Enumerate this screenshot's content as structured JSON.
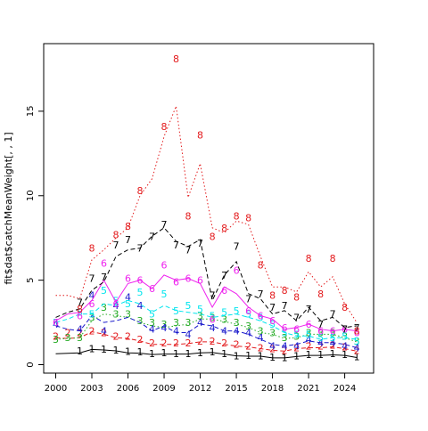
{
  "chart_data": {
    "type": "line",
    "title": "",
    "xlabel": "",
    "ylabel": "fit$dat$catchMeanWeight[, , 1]",
    "xlim": [
      1999.0,
      2026.4
    ],
    "ylim": [
      -0.5,
      19.0
    ],
    "x_ticks": [
      2000,
      2003,
      2006,
      2009,
      2012,
      2015,
      2018,
      2021,
      2024
    ],
    "y_ticks": [
      0,
      5,
      10,
      15
    ],
    "x": [
      2000,
      2001,
      2002,
      2003,
      2004,
      2005,
      2006,
      2007,
      2008,
      2009,
      2010,
      2011,
      2012,
      2013,
      2014,
      2015,
      2016,
      2017,
      2018,
      2019,
      2020,
      2021,
      2022,
      2023,
      2024,
      2025
    ],
    "series": [
      {
        "name": "1",
        "color": "#000000",
        "line_style": "solid",
        "observed": [
          null,
          null,
          0.83,
          0.95,
          0.92,
          0.87,
          0.8,
          0.76,
          0.65,
          0.7,
          0.65,
          0.65,
          0.72,
          0.76,
          0.67,
          0.54,
          0.55,
          0.54,
          0.45,
          0.42,
          0.52,
          0.6,
          0.6,
          0.65,
          0.6,
          0.47
        ],
        "fitted": [
          0.65,
          0.67,
          0.7,
          0.9,
          0.87,
          0.82,
          0.7,
          0.68,
          0.6,
          0.63,
          0.63,
          0.63,
          0.7,
          0.72,
          0.62,
          0.52,
          0.5,
          0.5,
          0.4,
          0.4,
          0.48,
          0.55,
          0.55,
          0.58,
          0.55,
          0.42
        ]
      },
      {
        "name": "2",
        "color": "#e31a1c",
        "line_style": "dashed",
        "observed": [
          1.7,
          1.9,
          1.9,
          2.0,
          1.9,
          1.7,
          1.7,
          1.5,
          1.3,
          1.3,
          1.3,
          1.3,
          1.4,
          1.4,
          1.3,
          1.2,
          1.1,
          1.0,
          0.95,
          0.85,
          1.0,
          1.1,
          1.1,
          1.15,
          1.05,
          0.85
        ],
        "fitted": [
          1.6,
          1.55,
          1.6,
          1.95,
          1.8,
          1.6,
          1.55,
          1.4,
          1.2,
          1.2,
          1.2,
          1.25,
          1.35,
          1.35,
          1.2,
          1.1,
          1.05,
          0.95,
          0.85,
          0.8,
          0.95,
          1.0,
          1.0,
          1.05,
          0.95,
          0.8
        ]
      },
      {
        "name": "3",
        "color": "#22aa22",
        "line_style": "dotted",
        "observed": [
          1.5,
          1.6,
          1.6,
          2.8,
          3.4,
          3.0,
          3.0,
          2.6,
          2.5,
          2.4,
          2.5,
          2.5,
          2.9,
          2.8,
          2.7,
          2.5,
          2.3,
          2.0,
          1.9,
          1.6,
          1.7,
          1.9,
          1.9,
          1.9,
          1.7,
          1.4
        ],
        "fitted": [
          1.5,
          1.55,
          1.6,
          2.6,
          3.0,
          2.9,
          2.8,
          2.5,
          2.3,
          2.2,
          2.3,
          2.4,
          2.7,
          2.7,
          2.55,
          2.4,
          2.2,
          1.9,
          1.8,
          1.55,
          1.6,
          1.8,
          1.8,
          1.8,
          1.6,
          1.35
        ]
      },
      {
        "name": "4",
        "color": "#1a1acc",
        "line_style": "dashed",
        "observed": [
          2.4,
          null,
          2.1,
          4.1,
          2.0,
          3.5,
          4.0,
          3.5,
          2.1,
          2.2,
          2.0,
          1.8,
          2.5,
          2.2,
          2.0,
          2.0,
          1.9,
          1.6,
          1.1,
          1.1,
          1.1,
          1.5,
          1.3,
          1.3,
          1.1,
          1.0
        ],
        "fitted": [
          2.3,
          2.1,
          2.0,
          2.9,
          2.5,
          2.6,
          2.8,
          2.5,
          2.0,
          2.3,
          1.9,
          1.9,
          2.4,
          2.3,
          2.0,
          2.0,
          1.8,
          1.5,
          1.2,
          1.1,
          1.2,
          1.4,
          1.3,
          1.3,
          1.2,
          1.0
        ]
      },
      {
        "name": "5",
        "color": "#00e5ee",
        "line_style": "dashed",
        "observed": [
          2.5,
          null,
          3.1,
          3.0,
          4.4,
          3.8,
          3.6,
          4.3,
          3.0,
          4.2,
          3.2,
          3.5,
          3.3,
          2.9,
          3.1,
          3.2,
          3.0,
          2.8,
          2.4,
          1.9,
          1.8,
          1.8,
          1.6,
          1.6,
          1.7,
          1.4
        ],
        "fitted": [
          2.5,
          2.7,
          3.0,
          3.0,
          3.6,
          3.5,
          3.8,
          3.6,
          3.1,
          3.5,
          3.2,
          3.1,
          3.0,
          2.8,
          2.9,
          3.0,
          2.8,
          2.6,
          2.3,
          1.9,
          1.7,
          1.7,
          1.5,
          1.6,
          1.6,
          1.5
        ]
      },
      {
        "name": "6",
        "color": "#ee22ee",
        "line_style": "solid",
        "observed": [
          2.5,
          null,
          2.9,
          3.6,
          6.0,
          3.6,
          5.1,
          5.0,
          4.5,
          5.9,
          4.9,
          5.1,
          5.0,
          2.7,
          4.4,
          5.6,
          3.2,
          2.9,
          2.6,
          2.2,
          2.1,
          2.4,
          2.0,
          2.0,
          2.1,
          1.9
        ],
        "fitted": [
          2.6,
          3.0,
          3.1,
          3.8,
          5.0,
          3.7,
          4.8,
          5.0,
          4.5,
          5.3,
          5.0,
          5.1,
          4.8,
          3.4,
          4.6,
          4.2,
          3.4,
          2.9,
          2.7,
          2.1,
          2.2,
          2.4,
          2.1,
          2.0,
          2.1,
          2.0
        ]
      },
      {
        "name": "7",
        "color": "#000000",
        "line_style": "dashed",
        "observed": [
          null,
          null,
          3.7,
          5.1,
          5.2,
          7.1,
          7.4,
          6.9,
          7.6,
          8.3,
          7.1,
          6.8,
          7.2,
          4.1,
          5.3,
          7.0,
          3.9,
          4.2,
          3.4,
          3.5,
          2.8,
          3.3,
          2.4,
          3.0,
          2.1,
          2.2
        ],
        "fitted": [
          2.8,
          3.1,
          3.3,
          4.4,
          4.9,
          6.4,
          6.8,
          6.9,
          7.6,
          8.1,
          7.3,
          7.0,
          7.4,
          3.8,
          5.3,
          6.1,
          4.2,
          3.9,
          3.0,
          3.2,
          2.6,
          3.4,
          2.6,
          2.8,
          2.2,
          2.3
        ]
      },
      {
        "name": "8",
        "color": "#e31a1c",
        "line_style": "dotted",
        "observed": [
          null,
          null,
          3.3,
          6.9,
          null,
          7.7,
          8.2,
          10.3,
          null,
          14.1,
          18.1,
          8.8,
          13.6,
          7.6,
          8.1,
          8.8,
          8.7,
          5.9,
          4.1,
          4.4,
          4.0,
          6.3,
          4.2,
          6.3,
          3.4,
          2.0
        ],
        "fitted": [
          4.1,
          4.1,
          3.9,
          6.2,
          6.8,
          7.5,
          8.1,
          10.0,
          11.0,
          13.5,
          15.3,
          9.9,
          11.9,
          8.1,
          7.8,
          8.5,
          8.3,
          6.4,
          4.6,
          4.6,
          4.3,
          5.5,
          4.6,
          5.2,
          3.6,
          2.5
        ]
      }
    ]
  }
}
